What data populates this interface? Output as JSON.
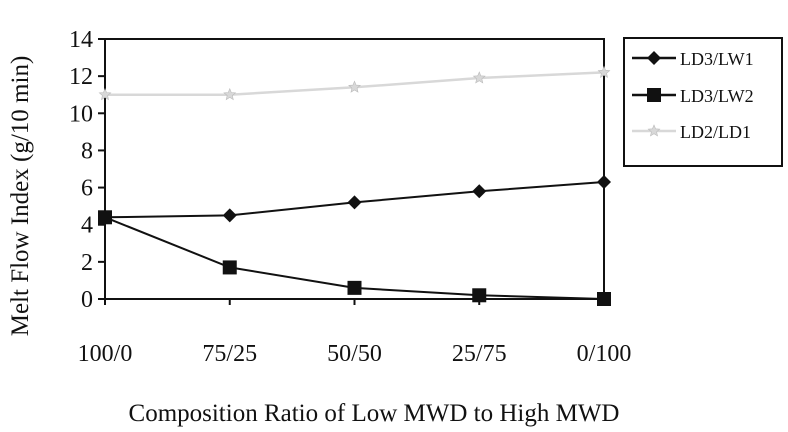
{
  "chart_data": {
    "type": "line",
    "title": "",
    "xlabel": "Composition Ratio of Low MWD to High MWD",
    "ylabel": "Melt Flow Index (g/10 min)",
    "categories": [
      "100/0",
      "75/25",
      "50/50",
      "25/75",
      "0/100"
    ],
    "ylim": [
      0,
      14
    ],
    "yticks": [
      "0",
      "2",
      "4",
      "6",
      "8",
      "10",
      "12",
      "14"
    ],
    "grid": false,
    "legend_position": "right",
    "series": [
      {
        "name": "LD3/LW1",
        "values": [
          4.4,
          4.5,
          5.2,
          5.8,
          6.3
        ],
        "marker": "diamond",
        "color": "#111111"
      },
      {
        "name": "LD3/LW2",
        "values": [
          4.4,
          1.7,
          0.6,
          0.2,
          0.0
        ],
        "marker": "square",
        "color": "#111111"
      },
      {
        "name": "LD2/LD1",
        "values": [
          11.0,
          11.0,
          11.4,
          11.9,
          12.2
        ],
        "marker": "star",
        "color": "#d8d8d8"
      }
    ]
  }
}
